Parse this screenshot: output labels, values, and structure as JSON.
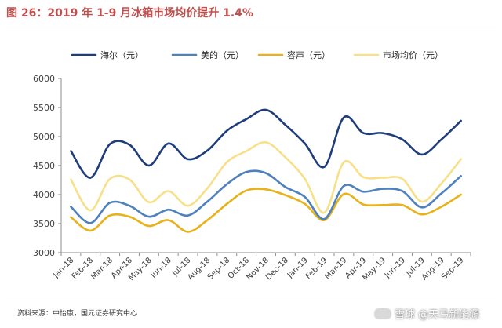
{
  "figure": {
    "title": "图 26：2019 年 1-9 月冰箱市场均价提升 1.4%",
    "source": "资料来源：中怡康，国元证券研究中心",
    "watermark": "雪球 @天马新能源"
  },
  "chart_data": {
    "type": "line",
    "categories": [
      "Jan-18",
      "Feb-18",
      "Mar-18",
      "Apr-18",
      "May-18",
      "Jun-18",
      "Jul-18",
      "Aug-18",
      "Sep-18",
      "Oct-18",
      "Nov-18",
      "Dec-18",
      "Jan-19",
      "Feb-19",
      "Mar-19",
      "Apr-19",
      "May-19",
      "Jun-19",
      "Jul-19",
      "Aug-19",
      "Sep-19"
    ],
    "ylim": [
      3000,
      6000
    ],
    "yticks": [
      3000,
      3500,
      4000,
      4500,
      5000,
      5500,
      6000
    ],
    "grid": false,
    "legend_position": "top",
    "series": [
      {
        "name": "海尔（元）",
        "color": "#1f3d7a",
        "values": [
          4750,
          4290,
          4870,
          4860,
          4500,
          4880,
          4610,
          4760,
          5100,
          5300,
          5460,
          5200,
          4880,
          4480,
          5330,
          5060,
          5060,
          4950,
          4690,
          4950,
          5270
        ]
      },
      {
        "name": "美的（元）",
        "color": "#4f81bd",
        "values": [
          3790,
          3510,
          3860,
          3810,
          3620,
          3740,
          3640,
          3880,
          4180,
          4390,
          4370,
          4130,
          3960,
          3580,
          4150,
          4050,
          4100,
          4060,
          3780,
          4020,
          4320
        ]
      },
      {
        "name": "容声（元）",
        "color": "#e8b21a",
        "values": [
          3610,
          3380,
          3640,
          3620,
          3460,
          3560,
          3360,
          3560,
          3840,
          4070,
          4090,
          3990,
          3840,
          3560,
          4010,
          3830,
          3820,
          3820,
          3660,
          3790,
          4000
        ]
      },
      {
        "name": "市场均价（元）",
        "color": "#f7e08a",
        "values": [
          4260,
          3730,
          4270,
          4260,
          3870,
          4060,
          3810,
          4110,
          4560,
          4750,
          4900,
          4640,
          4270,
          3690,
          4560,
          4300,
          4290,
          4270,
          3880,
          4190,
          4610
        ]
      }
    ]
  }
}
